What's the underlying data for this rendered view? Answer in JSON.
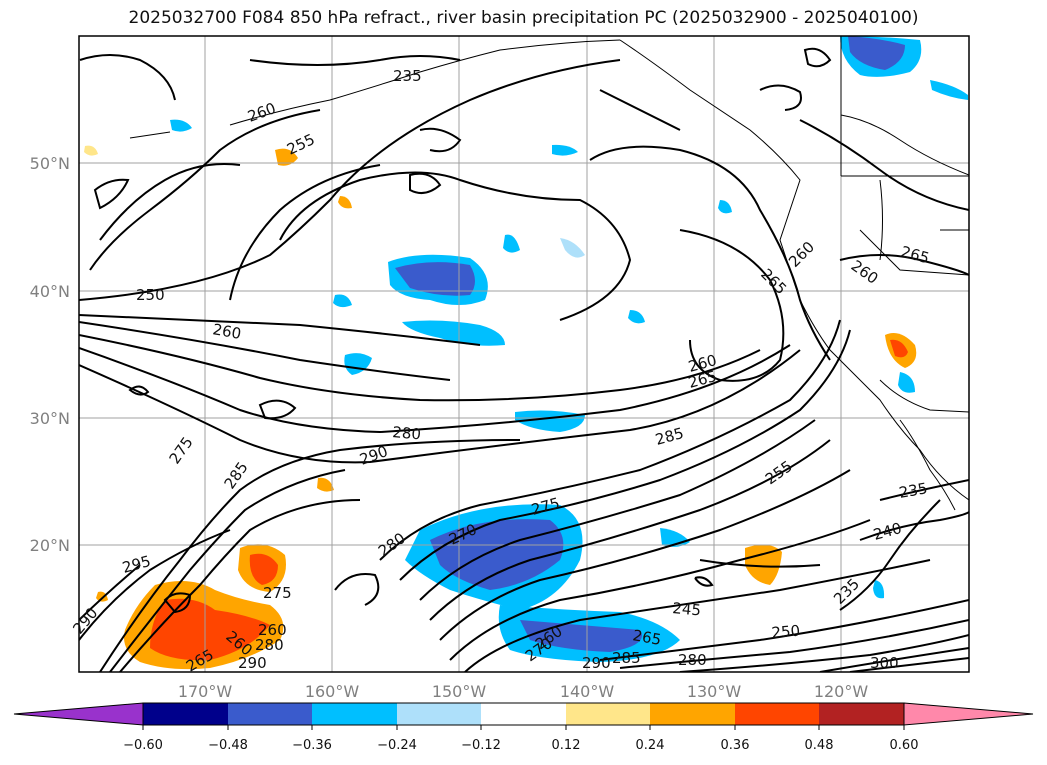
{
  "title": "2025032700 F084 850 hPa refract., river basin precipitation PC (2025032900 - 2025040100)",
  "latitude_labels": [
    "50°N",
    "40°N",
    "30°N",
    "20°N"
  ],
  "longitude_labels": [
    "170°W",
    "160°W",
    "150°W",
    "140°W",
    "130°W",
    "120°W"
  ],
  "contour_labels": [
    "235",
    "260",
    "255",
    "250",
    "260",
    "275",
    "285",
    "295",
    "290",
    "265",
    "260",
    "280",
    "290",
    "280",
    "270",
    "275",
    "260",
    "265",
    "285",
    "255",
    "260",
    "265",
    "260",
    "265",
    "235",
    "240",
    "235",
    "245",
    "250",
    "265",
    "280",
    "290",
    "285",
    "260",
    "270",
    "290",
    "275",
    "260",
    "280",
    "300"
  ],
  "colorbar": {
    "ticks": [
      "−0.60",
      "−0.48",
      "−0.36",
      "−0.24",
      "−0.12",
      "0.12",
      "0.24",
      "0.36",
      "0.48",
      "0.60"
    ],
    "colors": [
      "#9932cc",
      "#00008b",
      "#3a5bcc",
      "#00bfff",
      "#aee0fa",
      "#ffffff",
      "#ffe68a",
      "#ffa500",
      "#ff4500",
      "#b22222",
      "#ff88aa"
    ]
  }
}
